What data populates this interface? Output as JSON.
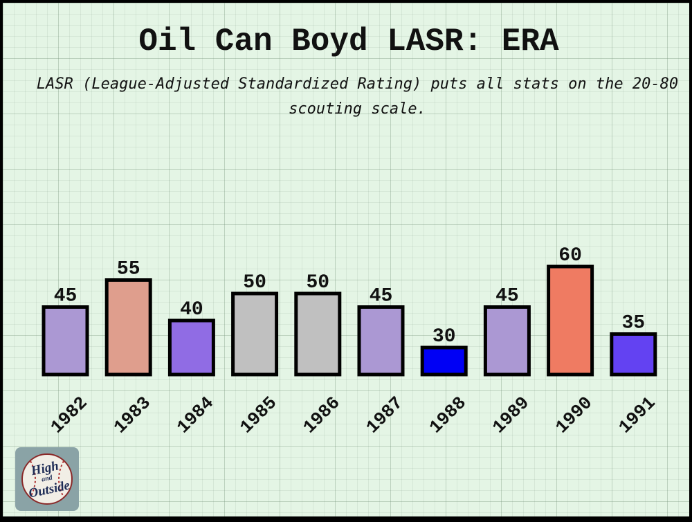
{
  "chart_data": {
    "type": "bar",
    "title": "Oil Can Boyd LASR: ERA",
    "subtitle": "LASR (League-Adjusted Standardized Rating) puts all stats on the 20-80 scouting scale.",
    "categories": [
      "1982",
      "1983",
      "1984",
      "1985",
      "1986",
      "1987",
      "1988",
      "1989",
      "1990",
      "1991"
    ],
    "values": [
      45,
      55,
      40,
      50,
      50,
      45,
      30,
      45,
      60,
      35
    ],
    "colors": [
      "#ab98d3",
      "#df9e8d",
      "#906ce4",
      "#c0c0c0",
      "#c0c0c0",
      "#ab98d3",
      "#0000f5",
      "#ab98d3",
      "#ef7b62",
      "#6342f2"
    ],
    "ylim": [
      20,
      80
    ],
    "xlabel": "",
    "ylabel": "",
    "grid": true,
    "legend": "none"
  },
  "logo": {
    "line1": "High",
    "line2": "and",
    "line3": "Outside"
  }
}
